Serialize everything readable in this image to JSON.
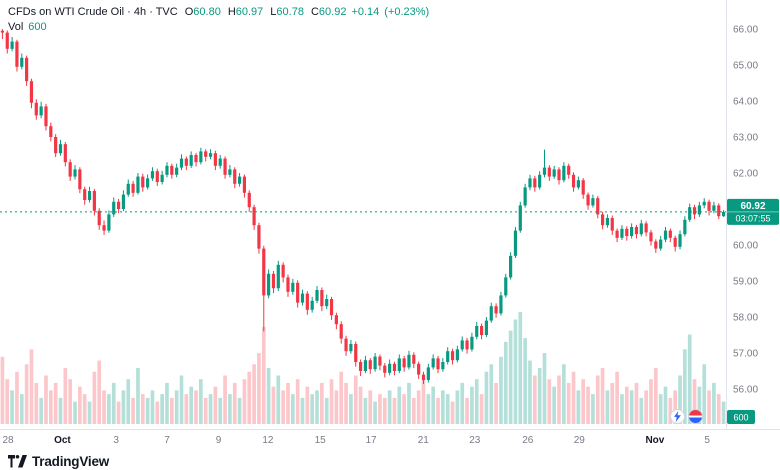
{
  "header": {
    "title": "CFDs on WTI Crude Oil · 4h · TVC",
    "ohlc": {
      "o_label": "O",
      "o": "60.80",
      "h_label": "H",
      "h": "60.97",
      "l_label": "L",
      "l": "60.78",
      "c_label": "C",
      "c": "60.92"
    },
    "change": "+0.14",
    "change_pct": "(+0.23%)",
    "vol_label": "Vol",
    "vol_value": "600"
  },
  "price_badge": {
    "price": "60.92",
    "countdown": "03:07:55"
  },
  "vol_axis_badge": "600",
  "footer": {
    "brand": "TradingView"
  },
  "corner_icons": [
    {
      "name": "flash-marker"
    },
    {
      "name": "target-marker"
    }
  ],
  "colors": {
    "up": "#089981",
    "down": "#f23645",
    "vol_up": "rgba(8,153,129,0.30)",
    "vol_down": "rgba(242,54,69,0.28)",
    "axis_text": "#787b86",
    "major_text": "#131722",
    "separator": "#e0e3eb",
    "badge_bg": "#089981",
    "badge_text": "#ffffff"
  },
  "chart_data": {
    "type": "candlestick",
    "title": "CFDs on WTI Crude Oil",
    "interval": "4h",
    "exchange": "TVC",
    "grid": false,
    "legend": false,
    "ylim": [
      55.8,
      66.2
    ],
    "y_ticks": [
      66,
      65,
      64,
      63,
      62,
      61,
      60,
      59,
      58,
      57,
      56
    ],
    "x_ticks": [
      {
        "label": "28",
        "pos": 0.011,
        "major": false
      },
      {
        "label": "Oct",
        "pos": 0.086,
        "major": true
      },
      {
        "label": "3",
        "pos": 0.16,
        "major": false
      },
      {
        "label": "7",
        "pos": 0.23,
        "major": false
      },
      {
        "label": "9",
        "pos": 0.301,
        "major": false
      },
      {
        "label": "12",
        "pos": 0.369,
        "major": false
      },
      {
        "label": "15",
        "pos": 0.441,
        "major": false
      },
      {
        "label": "17",
        "pos": 0.511,
        "major": false
      },
      {
        "label": "21",
        "pos": 0.583,
        "major": false
      },
      {
        "label": "23",
        "pos": 0.654,
        "major": false
      },
      {
        "label": "26",
        "pos": 0.727,
        "major": false
      },
      {
        "label": "29",
        "pos": 0.798,
        "major": false
      },
      {
        "label": "Nov",
        "pos": 0.902,
        "major": true
      },
      {
        "label": "5",
        "pos": 0.974,
        "major": false
      }
    ],
    "last_price": 60.92,
    "countdown": "03:07:55",
    "current_volume": 600,
    "candles": [
      [
        65.95,
        66.0,
        65.72,
        65.9
      ],
      [
        65.9,
        65.96,
        65.32,
        65.45
      ],
      [
        65.45,
        65.78,
        65.38,
        65.65
      ],
      [
        65.65,
        65.7,
        64.82,
        64.95
      ],
      [
        64.95,
        65.32,
        64.88,
        65.2
      ],
      [
        65.2,
        65.26,
        64.42,
        64.55
      ],
      [
        64.55,
        64.62,
        63.8,
        63.95
      ],
      [
        63.95,
        64.05,
        63.48,
        63.6
      ],
      [
        63.6,
        63.98,
        63.52,
        63.85
      ],
      [
        63.85,
        63.92,
        63.18,
        63.3
      ],
      [
        63.3,
        63.4,
        62.88,
        63.0
      ],
      [
        63.0,
        63.08,
        62.44,
        62.55
      ],
      [
        62.55,
        62.92,
        62.48,
        62.8
      ],
      [
        62.8,
        62.86,
        62.18,
        62.3
      ],
      [
        62.3,
        62.38,
        61.78,
        61.9
      ],
      [
        61.9,
        62.22,
        61.82,
        62.1
      ],
      [
        62.1,
        62.16,
        61.44,
        61.55
      ],
      [
        61.55,
        61.62,
        61.12,
        61.25
      ],
      [
        61.25,
        61.62,
        61.18,
        61.5
      ],
      [
        61.5,
        61.56,
        60.82,
        60.95
      ],
      [
        60.95,
        61.02,
        60.42,
        60.55
      ],
      [
        60.55,
        60.68,
        60.28,
        60.4
      ],
      [
        60.4,
        60.96,
        60.34,
        60.85
      ],
      [
        60.85,
        61.32,
        60.78,
        61.2
      ],
      [
        61.2,
        61.28,
        60.88,
        61.0
      ],
      [
        61.0,
        61.52,
        60.94,
        61.4
      ],
      [
        61.4,
        61.82,
        61.34,
        61.7
      ],
      [
        61.7,
        61.78,
        61.34,
        61.45
      ],
      [
        61.45,
        62.0,
        61.4,
        61.9
      ],
      [
        61.9,
        61.98,
        61.48,
        61.6
      ],
      [
        61.6,
        61.96,
        61.54,
        61.85
      ],
      [
        61.85,
        62.16,
        61.78,
        62.05
      ],
      [
        62.05,
        62.12,
        61.64,
        61.75
      ],
      [
        61.75,
        62.06,
        61.68,
        61.95
      ],
      [
        61.95,
        62.3,
        61.88,
        62.2
      ],
      [
        62.2,
        62.26,
        61.84,
        61.95
      ],
      [
        61.95,
        62.26,
        61.88,
        62.15
      ],
      [
        62.15,
        62.52,
        62.08,
        62.4
      ],
      [
        62.4,
        62.46,
        62.08,
        62.2
      ],
      [
        62.2,
        62.6,
        62.14,
        62.5
      ],
      [
        62.5,
        62.56,
        62.18,
        62.3
      ],
      [
        62.3,
        62.7,
        62.24,
        62.6
      ],
      [
        62.6,
        62.66,
        62.32,
        62.45
      ],
      [
        62.45,
        62.66,
        62.38,
        62.55
      ],
      [
        62.55,
        62.62,
        62.08,
        62.2
      ],
      [
        62.2,
        62.5,
        62.12,
        62.4
      ],
      [
        62.4,
        62.46,
        61.84,
        61.95
      ],
      [
        61.95,
        62.22,
        61.88,
        62.1
      ],
      [
        62.1,
        62.16,
        61.58,
        61.7
      ],
      [
        61.7,
        62.0,
        61.62,
        61.9
      ],
      [
        61.9,
        61.96,
        61.32,
        61.45
      ],
      [
        61.45,
        61.52,
        60.92,
        61.05
      ],
      [
        61.05,
        61.12,
        60.42,
        60.55
      ],
      [
        60.55,
        60.62,
        59.76,
        59.9
      ],
      [
        59.9,
        59.98,
        57.6,
        58.6
      ],
      [
        58.6,
        59.32,
        58.52,
        59.2
      ],
      [
        59.2,
        59.28,
        58.66,
        58.8
      ],
      [
        58.8,
        59.56,
        58.72,
        59.45
      ],
      [
        59.45,
        59.52,
        58.96,
        59.1
      ],
      [
        59.1,
        59.18,
        58.56,
        58.7
      ],
      [
        58.7,
        59.06,
        58.62,
        58.95
      ],
      [
        58.95,
        59.02,
        58.26,
        58.4
      ],
      [
        58.4,
        58.76,
        58.32,
        58.65
      ],
      [
        58.65,
        58.72,
        58.06,
        58.2
      ],
      [
        58.2,
        58.56,
        58.12,
        58.45
      ],
      [
        58.45,
        58.86,
        58.38,
        58.75
      ],
      [
        58.75,
        58.82,
        58.16,
        58.3
      ],
      [
        58.3,
        58.62,
        58.22,
        58.5
      ],
      [
        58.5,
        58.56,
        57.92,
        58.05
      ],
      [
        58.05,
        58.12,
        57.66,
        57.8
      ],
      [
        57.8,
        57.88,
        57.26,
        57.4
      ],
      [
        57.4,
        57.48,
        56.92,
        57.05
      ],
      [
        57.05,
        57.36,
        56.98,
        57.25
      ],
      [
        57.25,
        57.32,
        56.62,
        56.75
      ],
      [
        56.75,
        56.82,
        56.36,
        56.5
      ],
      [
        56.5,
        56.92,
        56.44,
        56.8
      ],
      [
        56.8,
        56.86,
        56.42,
        56.55
      ],
      [
        56.55,
        57.0,
        56.48,
        56.9
      ],
      [
        56.9,
        56.96,
        56.52,
        56.65
      ],
      [
        56.65,
        56.72,
        56.32,
        56.45
      ],
      [
        56.45,
        56.82,
        56.38,
        56.7
      ],
      [
        56.7,
        56.76,
        56.38,
        56.5
      ],
      [
        56.5,
        56.96,
        56.44,
        56.85
      ],
      [
        56.85,
        56.92,
        56.48,
        56.6
      ],
      [
        56.6,
        57.06,
        56.54,
        56.95
      ],
      [
        56.95,
        57.02,
        56.58,
        56.7
      ],
      [
        56.7,
        56.76,
        56.28,
        56.4
      ],
      [
        56.4,
        56.48,
        56.14,
        56.25
      ],
      [
        56.25,
        56.7,
        56.18,
        56.6
      ],
      [
        56.6,
        56.96,
        56.54,
        56.85
      ],
      [
        56.85,
        56.92,
        56.44,
        56.55
      ],
      [
        56.55,
        56.86,
        56.48,
        56.75
      ],
      [
        56.75,
        57.16,
        56.68,
        57.05
      ],
      [
        57.05,
        57.12,
        56.68,
        56.8
      ],
      [
        56.8,
        57.2,
        56.74,
        57.1
      ],
      [
        57.1,
        57.46,
        57.04,
        57.35
      ],
      [
        57.35,
        57.42,
        56.98,
        57.1
      ],
      [
        57.1,
        57.56,
        57.04,
        57.45
      ],
      [
        57.45,
        57.86,
        57.38,
        57.75
      ],
      [
        57.75,
        57.82,
        57.38,
        57.5
      ],
      [
        57.5,
        58.0,
        57.44,
        57.9
      ],
      [
        57.9,
        58.4,
        57.84,
        58.3
      ],
      [
        58.3,
        58.38,
        57.98,
        58.1
      ],
      [
        58.1,
        58.7,
        58.04,
        58.6
      ],
      [
        58.6,
        59.2,
        58.54,
        59.1
      ],
      [
        59.1,
        59.8,
        59.04,
        59.7
      ],
      [
        59.7,
        60.5,
        59.64,
        60.4
      ],
      [
        60.4,
        61.2,
        60.34,
        61.1
      ],
      [
        61.1,
        61.7,
        61.04,
        61.6
      ],
      [
        61.6,
        61.95,
        61.52,
        61.85
      ],
      [
        61.85,
        61.92,
        61.48,
        61.6
      ],
      [
        61.6,
        62.05,
        61.54,
        61.95
      ],
      [
        61.95,
        62.65,
        61.88,
        62.15
      ],
      [
        62.15,
        62.22,
        61.78,
        61.9
      ],
      [
        61.9,
        62.2,
        61.84,
        62.1
      ],
      [
        62.1,
        62.16,
        61.68,
        61.8
      ],
      [
        61.8,
        62.3,
        61.74,
        62.2
      ],
      [
        62.2,
        62.26,
        61.84,
        61.95
      ],
      [
        61.95,
        62.02,
        61.48,
        61.6
      ],
      [
        61.6,
        61.9,
        61.54,
        61.8
      ],
      [
        61.8,
        61.86,
        61.28,
        61.4
      ],
      [
        61.4,
        61.46,
        60.98,
        61.1
      ],
      [
        61.1,
        61.4,
        61.04,
        61.3
      ],
      [
        61.3,
        61.36,
        60.74,
        60.85
      ],
      [
        60.85,
        60.92,
        60.44,
        60.55
      ],
      [
        60.55,
        60.85,
        60.48,
        60.75
      ],
      [
        60.75,
        60.82,
        60.28,
        60.4
      ],
      [
        60.4,
        60.46,
        60.08,
        60.2
      ],
      [
        60.2,
        60.55,
        60.14,
        60.45
      ],
      [
        60.45,
        60.52,
        60.12,
        60.25
      ],
      [
        60.25,
        60.6,
        60.18,
        60.5
      ],
      [
        60.5,
        60.56,
        60.18,
        60.3
      ],
      [
        60.3,
        60.7,
        60.24,
        60.6
      ],
      [
        60.6,
        60.66,
        60.24,
        60.35
      ],
      [
        60.35,
        60.42,
        59.98,
        60.1
      ],
      [
        60.1,
        60.16,
        59.78,
        59.9
      ],
      [
        59.9,
        60.25,
        59.84,
        60.15
      ],
      [
        60.15,
        60.5,
        60.08,
        60.4
      ],
      [
        60.4,
        60.46,
        60.08,
        60.2
      ],
      [
        60.2,
        60.26,
        59.82,
        59.95
      ],
      [
        59.95,
        60.4,
        59.88,
        60.3
      ],
      [
        60.3,
        60.8,
        60.24,
        60.7
      ],
      [
        60.7,
        61.15,
        60.64,
        61.05
      ],
      [
        61.05,
        61.12,
        60.72,
        60.85
      ],
      [
        60.85,
        61.2,
        60.78,
        61.1
      ],
      [
        61.1,
        61.3,
        61.02,
        61.2
      ],
      [
        61.2,
        61.26,
        60.82,
        60.95
      ],
      [
        60.95,
        61.2,
        60.88,
        61.1
      ],
      [
        61.1,
        61.16,
        60.72,
        60.8
      ],
      [
        60.8,
        60.97,
        60.78,
        60.92
      ]
    ],
    "volumes": [
      1800,
      1200,
      900,
      1400,
      800,
      1600,
      2000,
      1100,
      700,
      1300,
      900,
      1100,
      700,
      1500,
      1200,
      600,
      1000,
      800,
      600,
      1400,
      1700,
      900,
      800,
      1100,
      600,
      900,
      1200,
      700,
      1500,
      800,
      700,
      900,
      600,
      800,
      1100,
      700,
      900,
      1300,
      800,
      1000,
      900,
      1200,
      700,
      800,
      1000,
      700,
      1300,
      800,
      1100,
      700,
      1200,
      1400,
      1600,
      1900,
      2600,
      1500,
      1000,
      1300,
      900,
      1100,
      800,
      1200,
      700,
      1000,
      800,
      900,
      1100,
      700,
      1200,
      900,
      1400,
      1100,
      800,
      1300,
      1000,
      700,
      900,
      600,
      800,
      700,
      900,
      700,
      1000,
      800,
      1100,
      700,
      900,
      1200,
      800,
      1000,
      700,
      900,
      800,
      600,
      900,
      1100,
      700,
      1000,
      1200,
      800,
      1400,
      1600,
      1100,
      1800,
      2200,
      2500,
      2800,
      3000,
      2300,
      1700,
      1300,
      1500,
      1900,
      1200,
      1000,
      1300,
      1600,
      1100,
      1400,
      900,
      1200,
      1000,
      800,
      1300,
      1500,
      900,
      1100,
      1400,
      800,
      1000,
      900,
      1100,
      700,
      900,
      1200,
      1500,
      800,
      1000,
      700,
      900,
      1300,
      2000,
      2400,
      1200,
      1000,
      1600,
      900,
      1100,
      800,
      600
    ]
  }
}
